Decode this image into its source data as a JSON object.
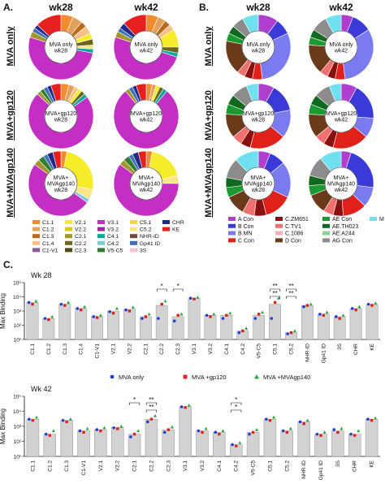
{
  "panel_a": {
    "label": "A.",
    "col_headers": [
      "wk28",
      "wk42"
    ],
    "row_labels": [
      "MVA only",
      "MVA+gp120",
      "MVA+MVAgp140"
    ],
    "center_labels": [
      [
        "MVA only\nwk28",
        "MVA only\nwk42"
      ],
      [
        "MVA+gp120\nwk28",
        "MVA+gp120\nwk42"
      ],
      [
        "MVA+\nMVAgp140\nwk28",
        "MVA+\nMVAgp140\nwk42"
      ]
    ],
    "legend": [
      {
        "name": "C1.1",
        "color": "#f28b30"
      },
      {
        "name": "C1.2",
        "color": "#e2a15a"
      },
      {
        "name": "C1.3",
        "color": "#ba6a1c"
      },
      {
        "name": "C1.4",
        "color": "#f7c08a"
      },
      {
        "name": "C1-V1",
        "color": "#8d5aa0"
      },
      {
        "name": "V2.1",
        "color": "#f6ec2a"
      },
      {
        "name": "V2.2",
        "color": "#d8c81c"
      },
      {
        "name": "C2.1",
        "color": "#a3962a"
      },
      {
        "name": "C2.2",
        "color": "#6f651c"
      },
      {
        "name": "C2.3",
        "color": "#514818"
      },
      {
        "name": "V3.1",
        "color": "#c22fc2"
      },
      {
        "name": "V3.2",
        "color": "#9b2a9b"
      },
      {
        "name": "C4.1",
        "color": "#00a99d"
      },
      {
        "name": "C4.2",
        "color": "#7fcbd8"
      },
      {
        "name": "V5-C5",
        "color": "#2e7d32"
      },
      {
        "name": "C5.1",
        "color": "#f4d83a"
      },
      {
        "name": "C5.2",
        "color": "#fbe58b"
      },
      {
        "name": "NHR-ID",
        "color": "#6d4c3a"
      },
      {
        "name": "Gp41 ID",
        "color": "#3f6fb5"
      },
      {
        "name": "3S",
        "color": "#f4c2d6"
      },
      {
        "name": "CHR",
        "color": "#1f2a8a"
      },
      {
        "name": "KE",
        "color": "#e5201f"
      }
    ],
    "donut_data": [
      [
        [
          {
            "c": "C1.1",
            "v": 6
          },
          {
            "c": "C1.2",
            "v": 5
          },
          {
            "c": "C1.3",
            "v": 3
          },
          {
            "c": "C1.4",
            "v": 4
          },
          {
            "c": "V2.1",
            "v": 3
          },
          {
            "c": "C2.2",
            "v": 3
          },
          {
            "c": "C5.2",
            "v": 2
          },
          {
            "c": "C4.1",
            "v": 2
          },
          {
            "c": "V3.1",
            "v": 52
          },
          {
            "c": "C2.1",
            "v": 3
          },
          {
            "c": "Gp41 ID",
            "v": 2
          },
          {
            "c": "CHR",
            "v": 2
          },
          {
            "c": "KE",
            "v": 13
          }
        ],
        [
          {
            "c": "C1.1",
            "v": 6
          },
          {
            "c": "C1.2",
            "v": 4
          },
          {
            "c": "C1.3",
            "v": 3
          },
          {
            "c": "C1.4",
            "v": 3
          },
          {
            "c": "V2.1",
            "v": 9
          },
          {
            "c": "C2.2",
            "v": 3
          },
          {
            "c": "C4.1",
            "v": 2
          },
          {
            "c": "V3.1",
            "v": 50
          },
          {
            "c": "C2.1",
            "v": 3
          },
          {
            "c": "Gp41 ID",
            "v": 2
          },
          {
            "c": "CHR",
            "v": 3
          },
          {
            "c": "KE",
            "v": 12
          }
        ]
      ],
      [
        [
          {
            "c": "C1.1",
            "v": 4
          },
          {
            "c": "C1.2",
            "v": 3
          },
          {
            "c": "C1.4",
            "v": 2
          },
          {
            "c": "V2.1",
            "v": 2
          },
          {
            "c": "C2.2",
            "v": 2
          },
          {
            "c": "C4.1",
            "v": 2
          },
          {
            "c": "V3.1",
            "v": 72
          },
          {
            "c": "C2.1",
            "v": 2
          },
          {
            "c": "V5-C5",
            "v": 2
          },
          {
            "c": "Gp41 ID",
            "v": 2
          },
          {
            "c": "CHR",
            "v": 2
          },
          {
            "c": "KE",
            "v": 5
          }
        ],
        [
          {
            "c": "C1.1",
            "v": 3
          },
          {
            "c": "C1.2",
            "v": 2
          },
          {
            "c": "V2.1",
            "v": 2
          },
          {
            "c": "C2.2",
            "v": 2
          },
          {
            "c": "C4.1",
            "v": 2
          },
          {
            "c": "V3.1",
            "v": 78
          },
          {
            "c": "C2.1",
            "v": 2
          },
          {
            "c": "Gp41 ID",
            "v": 2
          },
          {
            "c": "CHR",
            "v": 2
          },
          {
            "c": "KE",
            "v": 5
          }
        ]
      ],
      [
        [
          {
            "c": "C1.1",
            "v": 3
          },
          {
            "c": "V2.1",
            "v": 25
          },
          {
            "c": "C5.2",
            "v": 5
          },
          {
            "c": "C4.2",
            "v": 2
          },
          {
            "c": "V3.1",
            "v": 50
          },
          {
            "c": "C2.1",
            "v": 3
          },
          {
            "c": "V5-C5",
            "v": 3
          },
          {
            "c": "Gp41 ID",
            "v": 2
          },
          {
            "c": "CHR",
            "v": 3
          },
          {
            "c": "KE",
            "v": 4
          }
        ],
        [
          {
            "c": "C1.1",
            "v": 3
          },
          {
            "c": "V2.1",
            "v": 18
          },
          {
            "c": "C5.2",
            "v": 4
          },
          {
            "c": "V3.1",
            "v": 60
          },
          {
            "c": "C2.1",
            "v": 3
          },
          {
            "c": "V5-C5",
            "v": 3
          },
          {
            "c": "Gp41 ID",
            "v": 2
          },
          {
            "c": "CHR",
            "v": 3
          },
          {
            "c": "KE",
            "v": 4
          }
        ]
      ]
    ]
  },
  "panel_b": {
    "label": "B.",
    "col_headers": [
      "wk28",
      "wk42"
    ],
    "row_labels": [
      "MVA only",
      "MVA+gp120",
      "MVA+MVAgp140"
    ],
    "center_labels": [
      [
        "MVA only\nwk28",
        "MVA only\nwk42"
      ],
      [
        "MVA+gp120\nwk28",
        "MVA+gp120\nwk42"
      ],
      [
        "MVA+\nMVAgp140\nwk28",
        "MVA+\nMVAgp140\nwk42"
      ]
    ],
    "legend": [
      {
        "name": "A Con",
        "color": "#b03fd0"
      },
      {
        "name": "B Con",
        "color": "#3a3ad8"
      },
      {
        "name": "B.MN",
        "color": "#7b7bf0"
      },
      {
        "name": "C Con",
        "color": "#e0201a"
      },
      {
        "name": "C.ZM651",
        "color": "#8a1010"
      },
      {
        "name": "C.TV1",
        "color": "#f07070"
      },
      {
        "name": "C.1086",
        "color": "#f4b0b0"
      },
      {
        "name": "D Con",
        "color": "#6a3a1a"
      },
      {
        "name": "AE Con",
        "color": "#1a9a30"
      },
      {
        "name": "AE.TH023",
        "color": "#0f6a1f"
      },
      {
        "name": "AE.A244",
        "color": "#8ad090"
      },
      {
        "name": "AG Con",
        "color": "#8c8c8c"
      },
      {
        "name": "M Con",
        "color": "#6ee0f0"
      }
    ],
    "donut_data": [
      [
        [
          {
            "c": "A Con",
            "v": 10
          },
          {
            "c": "B Con",
            "v": 8
          },
          {
            "c": "B.MN",
            "v": 30
          },
          {
            "c": "C Con",
            "v": 5
          },
          {
            "c": "C.ZM651",
            "v": 4
          },
          {
            "c": "C.TV1",
            "v": 4
          },
          {
            "c": "D Con",
            "v": 17
          },
          {
            "c": "AE Con",
            "v": 4
          },
          {
            "c": "AE.TH023",
            "v": 4
          },
          {
            "c": "AG Con",
            "v": 6
          },
          {
            "c": "M Con",
            "v": 8
          }
        ],
        [
          {
            "c": "A Con",
            "v": 6
          },
          {
            "c": "B Con",
            "v": 10
          },
          {
            "c": "B.MN",
            "v": 32
          },
          {
            "c": "C Con",
            "v": 5
          },
          {
            "c": "C.ZM651",
            "v": 4
          },
          {
            "c": "C.TV1",
            "v": 4
          },
          {
            "c": "D Con",
            "v": 15
          },
          {
            "c": "AE Con",
            "v": 4
          },
          {
            "c": "AE.TH023",
            "v": 4
          },
          {
            "c": "AG Con",
            "v": 8
          },
          {
            "c": "M Con",
            "v": 8
          }
        ]
      ],
      [
        [
          {
            "c": "A Con",
            "v": 8
          },
          {
            "c": "B Con",
            "v": 14
          },
          {
            "c": "B.MN",
            "v": 14
          },
          {
            "c": "C Con",
            "v": 18
          },
          {
            "c": "C.ZM651",
            "v": 5
          },
          {
            "c": "C.TV1",
            "v": 5
          },
          {
            "c": "D Con",
            "v": 12
          },
          {
            "c": "AE Con",
            "v": 5
          },
          {
            "c": "AE.TH023",
            "v": 5
          },
          {
            "c": "AG Con",
            "v": 8
          },
          {
            "c": "M Con",
            "v": 6
          }
        ],
        [
          {
            "c": "A Con",
            "v": 8
          },
          {
            "c": "B Con",
            "v": 18
          },
          {
            "c": "B.MN",
            "v": 10
          },
          {
            "c": "C Con",
            "v": 18
          },
          {
            "c": "C.ZM651",
            "v": 5
          },
          {
            "c": "C.TV1",
            "v": 5
          },
          {
            "c": "D Con",
            "v": 12
          },
          {
            "c": "AE Con",
            "v": 5
          },
          {
            "c": "AE.TH023",
            "v": 5
          },
          {
            "c": "AG Con",
            "v": 8
          },
          {
            "c": "M Con",
            "v": 6
          }
        ]
      ],
      [
        [
          {
            "c": "A Con",
            "v": 6
          },
          {
            "c": "B Con",
            "v": 8
          },
          {
            "c": "B.MN",
            "v": 18
          },
          {
            "c": "C Con",
            "v": 14
          },
          {
            "c": "C.ZM651",
            "v": 6
          },
          {
            "c": "C.TV1",
            "v": 6
          },
          {
            "c": "D Con",
            "v": 10
          },
          {
            "c": "AE Con",
            "v": 5
          },
          {
            "c": "AE.TH023",
            "v": 5
          },
          {
            "c": "AG Con",
            "v": 10
          },
          {
            "c": "M Con",
            "v": 12
          }
        ],
        [
          {
            "c": "A Con",
            "v": 5
          },
          {
            "c": "B Con",
            "v": 22
          },
          {
            "c": "B.MN",
            "v": 10
          },
          {
            "c": "C Con",
            "v": 12
          },
          {
            "c": "C.ZM651",
            "v": 5
          },
          {
            "c": "C.TV1",
            "v": 5
          },
          {
            "c": "D Con",
            "v": 10
          },
          {
            "c": "AE Con",
            "v": 5
          },
          {
            "c": "AE.TH023",
            "v": 5
          },
          {
            "c": "AG Con",
            "v": 10
          },
          {
            "c": "M Con",
            "v": 11
          }
        ]
      ]
    ]
  },
  "chart_data": [
    {
      "type": "scatter",
      "title": "Wk 28",
      "ylabel": "Max Binding",
      "yscale": "log",
      "ylim": [
        10,
        100000
      ],
      "yticks": [
        "10¹",
        "10²",
        "10³",
        "10⁴",
        "10⁵"
      ],
      "categories": [
        "C1.1",
        "C1.2",
        "C1.3",
        "C1.4",
        "C1-V1",
        "V2.1",
        "V2.2",
        "C2.1",
        "C2.2",
        "C2.3",
        "V3.1",
        "V3.2",
        "C4.1",
        "C4.2",
        "V5-C5",
        "C5.1",
        "C5.2",
        "NHR-ID",
        "Gp41 ID",
        "3S",
        "CHR",
        "KE"
      ],
      "group_colors": [
        "#1f3fd0",
        "#e0201a",
        "#26a83a"
      ],
      "series": [
        {
          "name": "MVA only",
          "values": [
            4000,
            300,
            3000,
            1500,
            400,
            900,
            1200,
            300,
            300,
            200,
            8000,
            500,
            300,
            30,
            300,
            300,
            25,
            2000,
            600,
            400,
            1500,
            3000
          ]
        },
        {
          "name": "MVA +gp120",
          "values": [
            3000,
            250,
            2500,
            1200,
            350,
            700,
            1000,
            400,
            3000,
            500,
            7000,
            400,
            500,
            40,
            600,
            4000,
            30,
            2500,
            500,
            300,
            1200,
            2500
          ]
        },
        {
          "name": "MVA +MVAgp140",
          "values": [
            5000,
            400,
            4000,
            2000,
            500,
            1500,
            1800,
            600,
            5000,
            600,
            9000,
            600,
            700,
            60,
            800,
            8000,
            40,
            3000,
            800,
            500,
            2000,
            3500
          ]
        }
      ],
      "bar_heights": [
        4000,
        300,
        3000,
        1500,
        400,
        1000,
        1300,
        400,
        2500,
        400,
        8000,
        500,
        500,
        40,
        500,
        3000,
        30,
        2500,
        600,
        400,
        1500,
        3000
      ],
      "significance": [
        {
          "category": "C2.2",
          "label": "*"
        },
        {
          "category": "C2.3",
          "label": "*"
        },
        {
          "category": "C5.1",
          "label": "**"
        },
        {
          "category": "C5.1",
          "label": "**"
        },
        {
          "category": "C5.2",
          "label": "**"
        },
        {
          "category": "C5.2",
          "label": "**"
        }
      ]
    },
    {
      "type": "scatter",
      "title": "Wk 42",
      "ylabel": "Max Binding",
      "yscale": "log",
      "ylim": [
        10,
        100000
      ],
      "yticks": [
        "10¹",
        "10²",
        "10³",
        "10⁴",
        "10⁵"
      ],
      "categories": [
        "C1.1",
        "C1.2",
        "C1.3",
        "C1-V1",
        "V2.1",
        "V2.2",
        "C2.1",
        "C2.2",
        "C2.3",
        "V3.1",
        "V3.2",
        "C4.1",
        "C4.2",
        "V5-C5",
        "C5.1",
        "C5.2",
        "NHR-ID",
        "Gp41 ID",
        "3S",
        "CHR",
        "KE"
      ],
      "group_colors": [
        "#1f3fd0",
        "#e0201a",
        "#26a83a"
      ],
      "series": [
        {
          "name": "MVA only",
          "values": [
            3000,
            300,
            2500,
            500,
            600,
            800,
            200,
            2000,
            400,
            20000,
            500,
            400,
            60,
            300,
            3000,
            500,
            2000,
            300,
            600,
            300,
            3000
          ]
        },
        {
          "name": "MVA +gp120",
          "values": [
            2500,
            250,
            2000,
            400,
            500,
            700,
            300,
            3000,
            600,
            18000,
            400,
            300,
            50,
            400,
            2500,
            400,
            1500,
            250,
            400,
            250,
            2500
          ]
        },
        {
          "name": "MVA +MVAgp140",
          "values": [
            4000,
            500,
            3000,
            700,
            800,
            1000,
            500,
            5000,
            900,
            25000,
            700,
            500,
            80,
            600,
            4000,
            700,
            2500,
            400,
            700,
            500,
            3500
          ]
        }
      ],
      "bar_heights": [
        3000,
        300,
        2500,
        500,
        600,
        800,
        300,
        3000,
        600,
        20000,
        500,
        400,
        60,
        400,
        3000,
        500,
        2000,
        300,
        500,
        300,
        3000
      ],
      "significance": [
        {
          "category": "C2.1",
          "label": "*"
        },
        {
          "category": "C2.2",
          "label": "**"
        },
        {
          "category": "C2.2",
          "label": "**"
        },
        {
          "category": "C4.2",
          "label": "*"
        },
        {
          "category": "C4.2",
          "label": "*"
        }
      ]
    }
  ],
  "panel_c": {
    "label": "C.",
    "legend": [
      {
        "name": "MVA only",
        "color": "#1f3fd0",
        "marker": "circle"
      },
      {
        "name": "MVA +gp120",
        "color": "#e0201a",
        "marker": "square"
      },
      {
        "name": "MVA +MVAgp140",
        "color": "#26a83a",
        "marker": "triangle"
      }
    ]
  }
}
